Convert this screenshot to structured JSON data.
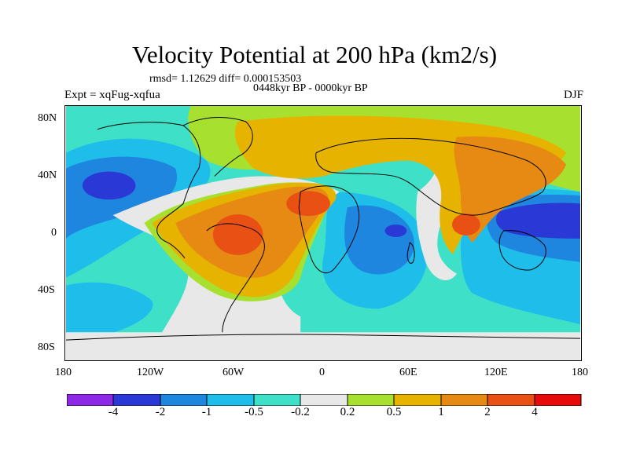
{
  "title": "Velocity Potential at 200 hPa (km2/s)",
  "stats": "rmsd= 1.12629 diff= 0.000153503",
  "period": "0448kyr BP - 0000kyr BP",
  "experiment": "Expt = xqFug-xqfua",
  "season": "DJF",
  "lat_labels": [
    "80N",
    "40N",
    "0",
    "40S",
    "80S"
  ],
  "lon_labels": [
    "180",
    "120W",
    "60W",
    "0",
    "60E",
    "120E",
    "180"
  ],
  "colorbar": {
    "labels": [
      "-4",
      "-2",
      "-1",
      "-0.5",
      "-0.2",
      "0.2",
      "0.5",
      "1",
      "2",
      "4"
    ],
    "colors": [
      "#8c28e6",
      "#2a38d6",
      "#1f86e0",
      "#1fbeea",
      "#3fe0c8",
      "#e8e8e8",
      "#a8e030",
      "#e6b400",
      "#e68a14",
      "#e85014",
      "#e60a0a"
    ]
  },
  "colors": {
    "ocean_neutral": "#e8e8e8",
    "coast": "#000000"
  }
}
